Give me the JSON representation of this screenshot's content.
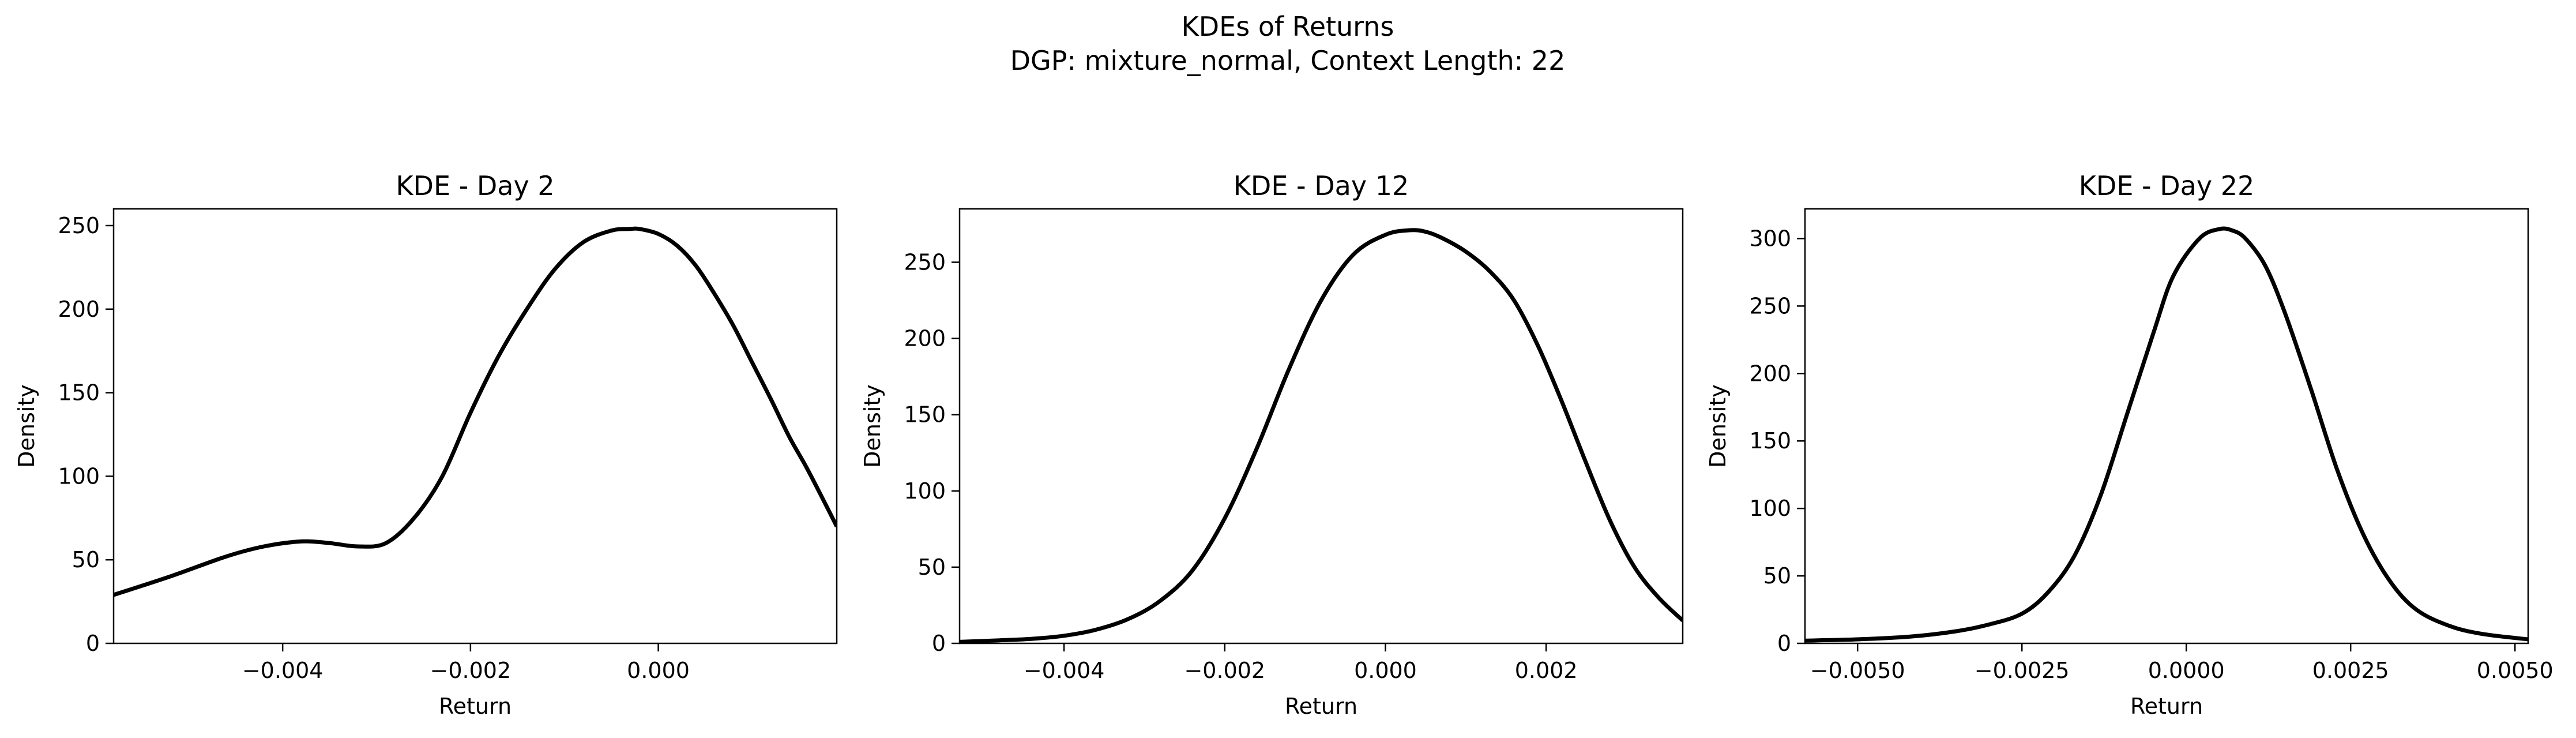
{
  "figure": {
    "title": "KDEs of Returns",
    "subtitle": "DGP: mixture_normal, Context Length: 22"
  },
  "chart_data": [
    {
      "type": "line",
      "title": "KDE - Day 2",
      "xlabel": "Return",
      "ylabel": "Density",
      "xlim": [
        -0.0058,
        0.0019
      ],
      "ylim": [
        0,
        260
      ],
      "xticks": [
        -0.004,
        -0.002,
        0.0
      ],
      "xtick_labels": [
        "−0.004",
        "−0.002",
        "0.000"
      ],
      "yticks": [
        0,
        50,
        100,
        150,
        200,
        250
      ],
      "ytick_labels": [
        "0",
        "50",
        "100",
        "150",
        "200",
        "250"
      ],
      "grid": false,
      "series": [
        {
          "color": "#000000",
          "x": [
            -0.0058,
            -0.0052,
            -0.0046,
            -0.0042,
            -0.0038,
            -0.0035,
            -0.0032,
            -0.0029,
            -0.0026,
            -0.0023,
            -0.002,
            -0.0017,
            -0.0014,
            -0.0011,
            -0.0008,
            -0.0005,
            -0.0003,
            -0.0002,
            0.0,
            0.0002,
            0.0004,
            0.0006,
            0.0008,
            0.001,
            0.0012,
            0.0014,
            0.0016,
            0.0019
          ],
          "y": [
            29,
            40,
            52,
            58,
            61,
            60,
            58,
            60,
            75,
            100,
            138,
            172,
            200,
            224,
            240,
            247,
            248,
            248,
            245,
            238,
            226,
            209,
            190,
            168,
            146,
            123,
            103,
            70
          ]
        }
      ]
    },
    {
      "type": "line",
      "title": "KDE - Day 12",
      "xlabel": "Return",
      "ylabel": "Density",
      "xlim": [
        -0.0053,
        0.0037
      ],
      "ylim": [
        0,
        285
      ],
      "xticks": [
        -0.004,
        -0.002,
        0.0,
        0.002
      ],
      "xtick_labels": [
        "−0.004",
        "−0.002",
        "0.000",
        "0.002"
      ],
      "yticks": [
        0,
        50,
        100,
        150,
        200,
        250
      ],
      "ytick_labels": [
        "0",
        "50",
        "100",
        "150",
        "200",
        "250"
      ],
      "grid": false,
      "series": [
        {
          "color": "#000000",
          "x": [
            -0.0053,
            -0.0048,
            -0.0044,
            -0.004,
            -0.0036,
            -0.0032,
            -0.0028,
            -0.0024,
            -0.002,
            -0.0016,
            -0.0012,
            -0.0008,
            -0.0004,
            0.0,
            0.0003,
            0.0005,
            0.0007,
            0.001,
            0.0013,
            0.0016,
            0.0019,
            0.0022,
            0.0025,
            0.0028,
            0.0031,
            0.0034,
            0.0037
          ],
          "y": [
            1,
            2,
            3,
            5,
            9,
            16,
            28,
            48,
            82,
            128,
            180,
            225,
            255,
            268,
            271,
            270,
            266,
            257,
            244,
            225,
            195,
            158,
            118,
            80,
            50,
            30,
            15
          ]
        }
      ]
    },
    {
      "type": "line",
      "title": "KDE - Day 22",
      "xlabel": "Return",
      "ylabel": "Density",
      "xlim": [
        -0.0058,
        0.0052
      ],
      "ylim": [
        0,
        322
      ],
      "xticks": [
        -0.005,
        -0.0025,
        0.0,
        0.0025,
        0.005
      ],
      "xtick_labels": [
        "−0.0050",
        "−0.0025",
        "0.0000",
        "0.0025",
        "0.0050"
      ],
      "yticks": [
        0,
        50,
        100,
        150,
        200,
        250,
        300
      ],
      "ytick_labels": [
        "0",
        "50",
        "100",
        "150",
        "200",
        "250",
        "300"
      ],
      "grid": false,
      "series": [
        {
          "color": "#000000",
          "x": [
            -0.0058,
            -0.005,
            -0.0042,
            -0.0035,
            -0.003,
            -0.0025,
            -0.0021,
            -0.0017,
            -0.0013,
            -0.0009,
            -0.0005,
            -0.0002,
            0.0002,
            0.0005,
            0.0007,
            0.0009,
            0.0012,
            0.0015,
            0.0019,
            0.0023,
            0.0027,
            0.0031,
            0.0035,
            0.004,
            0.0045,
            0.0052
          ],
          "y": [
            2,
            3,
            5,
            9,
            14,
            22,
            38,
            65,
            110,
            170,
            230,
            272,
            300,
            307,
            306,
            300,
            280,
            245,
            188,
            128,
            80,
            46,
            25,
            13,
            7,
            3
          ]
        }
      ]
    }
  ]
}
